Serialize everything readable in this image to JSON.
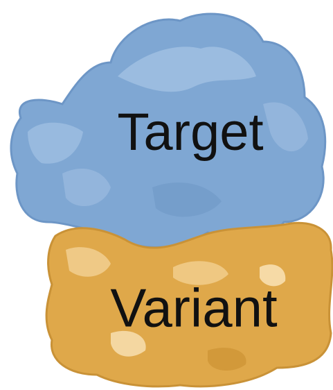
{
  "nodes": [
    {
      "label": "Target"
    },
    {
      "label": "Variant"
    }
  ]
}
